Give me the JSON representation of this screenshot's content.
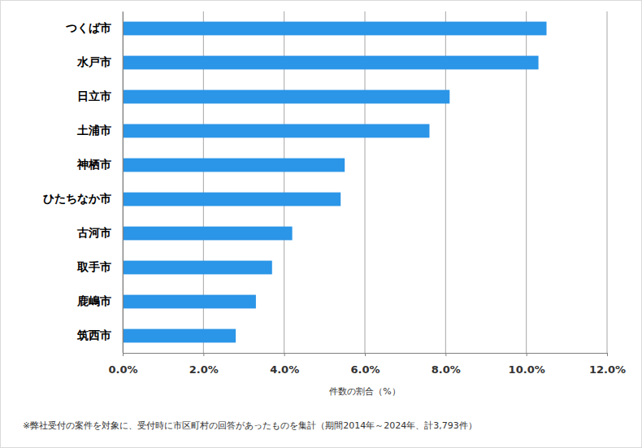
{
  "chart_data": {
    "type": "bar",
    "orientation": "horizontal",
    "categories": [
      "つくば市",
      "水戸市",
      "日立市",
      "土浦市",
      "神栖市",
      "ひたちなか市",
      "古河市",
      "取手市",
      "鹿嶋市",
      "筑西市"
    ],
    "values": [
      10.5,
      10.3,
      8.1,
      7.6,
      5.5,
      5.4,
      4.2,
      3.7,
      3.3,
      2.8
    ],
    "color": "#2b95e7",
    "x_label": "件数の割合（%）",
    "xlim": [
      0,
      12
    ],
    "xticks": [
      {
        "value": 0,
        "label": "0.0%"
      },
      {
        "value": 2,
        "label": "2.0%"
      },
      {
        "value": 4,
        "label": "4.0%"
      },
      {
        "value": 6,
        "label": "6.0%"
      },
      {
        "value": 8,
        "label": "8.0%"
      },
      {
        "value": 10,
        "label": "10.0%"
      },
      {
        "value": 12,
        "label": "12.0%"
      }
    ],
    "grid": true,
    "annotations": [
      "※弊社受付の案件を対象に、受付時に市区町村の回答があったものを集計（期間2014年～2024年、計3,793件）"
    ]
  }
}
